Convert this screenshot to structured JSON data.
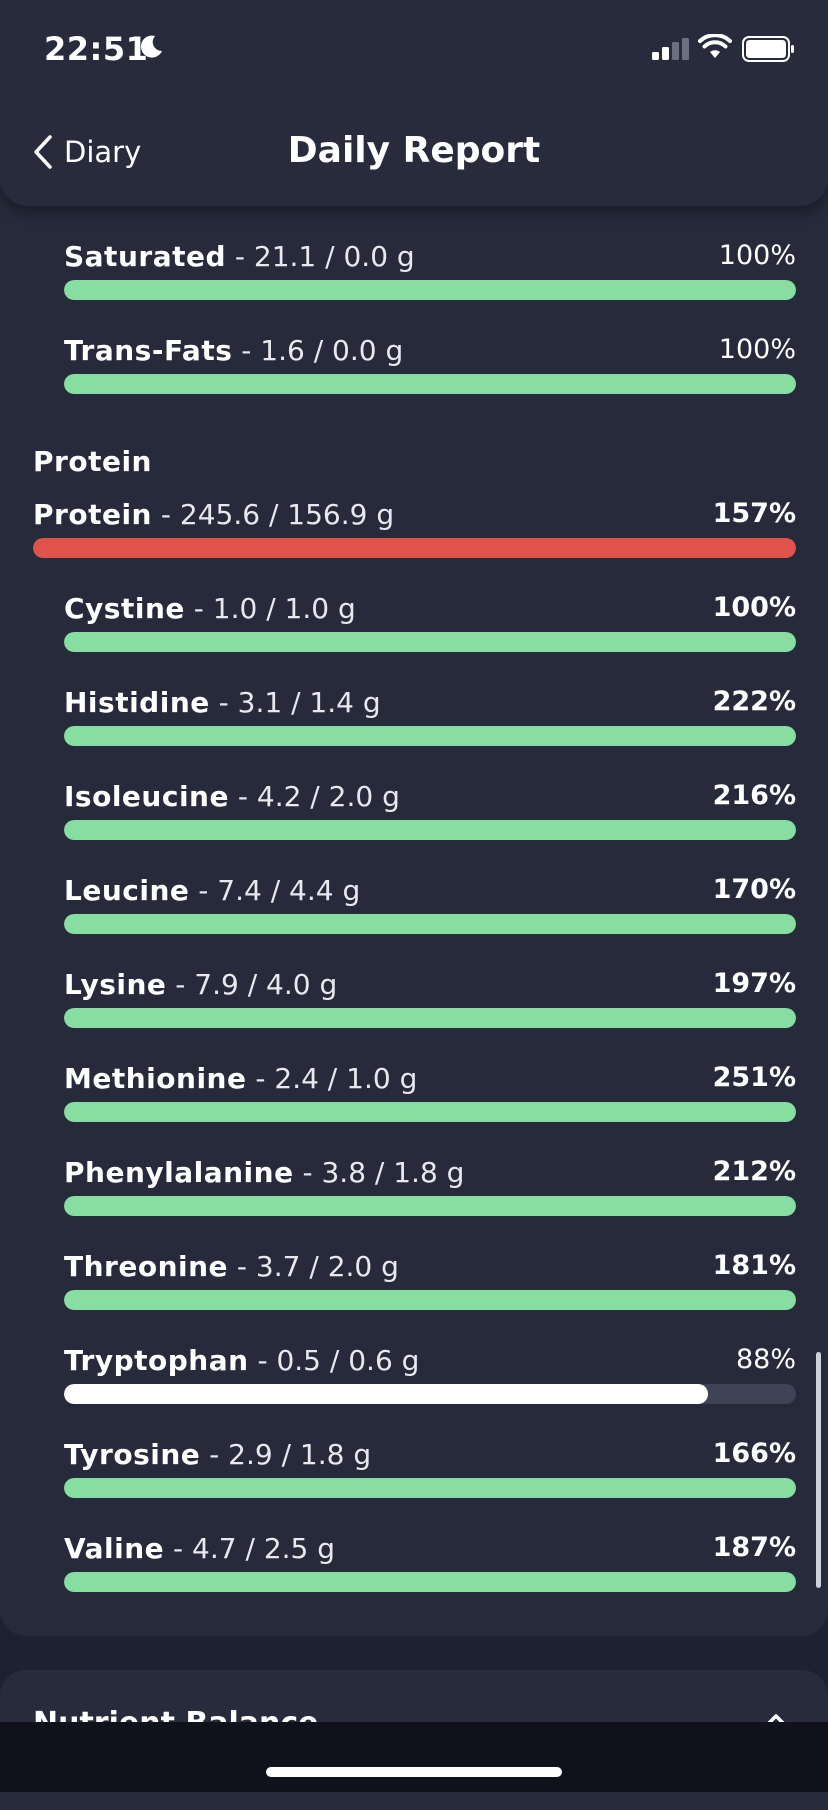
{
  "status": {
    "time": "22:51"
  },
  "nav": {
    "back_label": "Diary",
    "title": "Daily Report"
  },
  "fat_rows": [
    {
      "name": "Saturated",
      "value": " - 21.1 / 0.0 g",
      "pct": "100%",
      "fill": 1.0,
      "color": "#86dea0",
      "bold_pct": false
    },
    {
      "name": "Trans-Fats",
      "value": " - 1.6 / 0.0 g",
      "pct": "100%",
      "fill": 1.0,
      "color": "#86dea0",
      "bold_pct": false
    }
  ],
  "protein_section": {
    "title": "Protein",
    "total": {
      "name": "Protein",
      "value": " - 245.6 / 156.9 g",
      "pct": "157%",
      "fill": 1.0,
      "color": "#e0534b",
      "bold_pct": true
    },
    "amino_acids": [
      {
        "name": "Cystine",
        "value": " - 1.0 / 1.0 g",
        "pct": "100%",
        "fill": 1.0,
        "color": "#86dea0",
        "bold_pct": true
      },
      {
        "name": "Histidine",
        "value": " - 3.1 / 1.4 g",
        "pct": "222%",
        "fill": 1.0,
        "color": "#86dea0",
        "bold_pct": true
      },
      {
        "name": "Isoleucine",
        "value": " - 4.2 / 2.0 g",
        "pct": "216%",
        "fill": 1.0,
        "color": "#86dea0",
        "bold_pct": true
      },
      {
        "name": "Leucine",
        "value": " - 7.4 / 4.4 g",
        "pct": "170%",
        "fill": 1.0,
        "color": "#86dea0",
        "bold_pct": true
      },
      {
        "name": "Lysine",
        "value": " - 7.9 / 4.0 g",
        "pct": "197%",
        "fill": 1.0,
        "color": "#86dea0",
        "bold_pct": true
      },
      {
        "name": "Methionine",
        "value": " - 2.4 / 1.0 g",
        "pct": "251%",
        "fill": 1.0,
        "color": "#86dea0",
        "bold_pct": true
      },
      {
        "name": "Phenylalanine",
        "value": " - 3.8 / 1.8 g",
        "pct": "212%",
        "fill": 1.0,
        "color": "#86dea0",
        "bold_pct": true
      },
      {
        "name": "Threonine",
        "value": " - 3.7 / 2.0 g",
        "pct": "181%",
        "fill": 1.0,
        "color": "#86dea0",
        "bold_pct": true
      },
      {
        "name": "Tryptophan",
        "value": " - 0.5 / 0.6 g",
        "pct": "88%",
        "fill": 0.88,
        "color": "#ffffff",
        "bold_pct": false
      },
      {
        "name": "Tyrosine",
        "value": " - 2.9 / 1.8 g",
        "pct": "166%",
        "fill": 1.0,
        "color": "#86dea0",
        "bold_pct": true
      },
      {
        "name": "Valine",
        "value": " - 4.7 / 2.5 g",
        "pct": "187%",
        "fill": 1.0,
        "color": "#86dea0",
        "bold_pct": true
      }
    ]
  },
  "next_card": {
    "title": "Nutrient Balance"
  }
}
